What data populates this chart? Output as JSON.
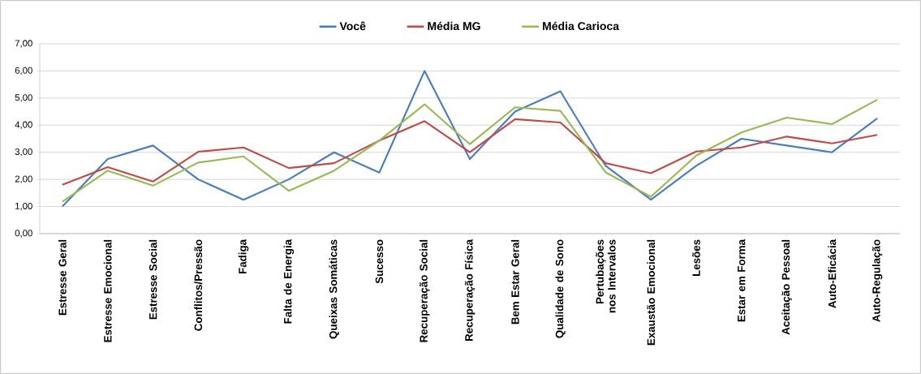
{
  "chart_data": {
    "type": "line",
    "categories": [
      "Estresse Geral",
      "Estresse Emocional",
      "Estresse Social",
      "Conflitos/Pressão",
      "Fadiga",
      "Falta de Energia",
      "Queixas Somáticas",
      "Sucesso",
      "Recuperação Social",
      "Recuperação Física",
      "Bem Estar Geral",
      "Qualidade de Sono",
      "Pertubações nos Intervalos",
      "Exaustão Emocional",
      "Lesões",
      "Estar em Forma",
      "Aceitação Pessoal",
      "Auto-Eficácia",
      "Auto-Regulação"
    ],
    "series": [
      {
        "name": "Você",
        "color": "#4a7ebb",
        "values": [
          1.0,
          2.75,
          3.25,
          2.0,
          1.25,
          2.0,
          3.0,
          2.25,
          6.0,
          2.75,
          4.5,
          5.25,
          2.5,
          1.25,
          2.5,
          3.5,
          3.25,
          3.0,
          4.25
        ]
      },
      {
        "name": "Média MG",
        "color": "#be4b48",
        "values": [
          1.8,
          2.45,
          1.92,
          3.02,
          3.18,
          2.42,
          2.6,
          3.43,
          4.15,
          3.0,
          4.22,
          4.1,
          2.6,
          2.23,
          3.03,
          3.18,
          3.58,
          3.33,
          3.64
        ]
      },
      {
        "name": "Média Carioca",
        "color": "#98b954",
        "values": [
          1.18,
          2.32,
          1.77,
          2.62,
          2.85,
          1.58,
          2.32,
          3.43,
          4.77,
          3.3,
          4.66,
          4.53,
          2.26,
          1.36,
          2.88,
          3.73,
          4.28,
          4.04,
          4.94
        ]
      }
    ],
    "ylim": [
      0,
      7
    ],
    "yticks": [
      {
        "value": 0,
        "label": "0,00"
      },
      {
        "value": 1,
        "label": "1,00"
      },
      {
        "value": 2,
        "label": "2,00"
      },
      {
        "value": 3,
        "label": "3,00"
      },
      {
        "value": 4,
        "label": "4,00"
      },
      {
        "value": 5,
        "label": "5,00"
      },
      {
        "value": 6,
        "label": "6,00"
      },
      {
        "value": 7,
        "label": "7,00"
      }
    ],
    "grid": "y",
    "legend": "top",
    "marker": "none",
    "line_style": "solid"
  }
}
